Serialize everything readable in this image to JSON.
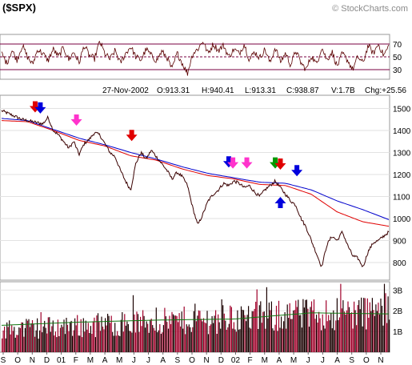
{
  "chart_data": {
    "type": "line",
    "title": "($SPX)",
    "watermark": "© StockCharts.com",
    "info_bar": {
      "date": "27-Nov-2002",
      "open": "O:913.31",
      "high": "H:940.41",
      "low": "L:913.31",
      "close": "C:938.87",
      "volume": "V:1.7B",
      "change": "Chg:+25.56"
    },
    "x_month_labels": [
      "S",
      "O",
      "N",
      "D",
      "01",
      "F",
      "M",
      "A",
      "M",
      "J",
      "J",
      "A",
      "S",
      "O",
      "N",
      "D",
      "02",
      "F",
      "M",
      "A",
      "M",
      "J",
      "J",
      "A",
      "S",
      "O",
      "N"
    ],
    "price_panel": {
      "ylim": [
        720,
        1560
      ],
      "y_ticks": [
        800,
        900,
        1000,
        1100,
        1200,
        1300,
        1400,
        1500
      ],
      "anchors": [
        [
          0,
          1490
        ],
        [
          2,
          1470
        ],
        [
          4,
          1450
        ],
        [
          6,
          1440
        ],
        [
          8,
          1430
        ],
        [
          9,
          1460
        ],
        [
          10,
          1400
        ],
        [
          11,
          1380
        ],
        [
          13,
          1320
        ],
        [
          14,
          1350
        ],
        [
          15,
          1290
        ],
        [
          16,
          1340
        ],
        [
          17,
          1360
        ],
        [
          18,
          1390
        ],
        [
          19,
          1380
        ],
        [
          20,
          1340
        ],
        [
          21,
          1300
        ],
        [
          22,
          1280
        ],
        [
          23,
          1220
        ],
        [
          24,
          1170
        ],
        [
          25,
          1130
        ],
        [
          26,
          1250
        ],
        [
          27,
          1300
        ],
        [
          28,
          1270
        ],
        [
          29,
          1310
        ],
        [
          30,
          1280
        ],
        [
          31,
          1250
        ],
        [
          32,
          1220
        ],
        [
          33,
          1180
        ],
        [
          34,
          1210
        ],
        [
          35,
          1190
        ],
        [
          36,
          1150
        ],
        [
          37,
          1050
        ],
        [
          38,
          970
        ],
        [
          39,
          1020
        ],
        [
          40,
          1080
        ],
        [
          41,
          1110
        ],
        [
          42,
          1130
        ],
        [
          43,
          1160
        ],
        [
          44,
          1150
        ],
        [
          45,
          1170
        ],
        [
          46,
          1160
        ],
        [
          47,
          1140
        ],
        [
          48,
          1150
        ],
        [
          49,
          1120
        ],
        [
          50,
          1100
        ],
        [
          51,
          1130
        ],
        [
          52,
          1150
        ],
        [
          53,
          1170
        ],
        [
          54,
          1140
        ],
        [
          55,
          1110
        ],
        [
          56,
          1080
        ],
        [
          57,
          1060
        ],
        [
          58,
          1000
        ],
        [
          59,
          960
        ],
        [
          60,
          900
        ],
        [
          61,
          840
        ],
        [
          62,
          780
        ],
        [
          63,
          880
        ],
        [
          64,
          920
        ],
        [
          65,
          900
        ],
        [
          66,
          940
        ],
        [
          67,
          880
        ],
        [
          68,
          830
        ],
        [
          69,
          820
        ],
        [
          70,
          780
        ],
        [
          71,
          850
        ],
        [
          72,
          890
        ],
        [
          73,
          900
        ],
        [
          74,
          920
        ],
        [
          75,
          938.87
        ]
      ],
      "ma_fast_anchors": [
        [
          0,
          1445
        ],
        [
          5,
          1440
        ],
        [
          10,
          1400
        ],
        [
          15,
          1355
        ],
        [
          20,
          1330
        ],
        [
          25,
          1285
        ],
        [
          30,
          1265
        ],
        [
          35,
          1225
        ],
        [
          40,
          1195
        ],
        [
          45,
          1180
        ],
        [
          50,
          1155
        ],
        [
          55,
          1150
        ],
        [
          60,
          1110
        ],
        [
          65,
          1030
        ],
        [
          70,
          985
        ],
        [
          75,
          965
        ]
      ],
      "ma_slow_anchors": [
        [
          0,
          1455
        ],
        [
          5,
          1445
        ],
        [
          10,
          1405
        ],
        [
          15,
          1365
        ],
        [
          20,
          1335
        ],
        [
          25,
          1300
        ],
        [
          30,
          1270
        ],
        [
          35,
          1235
        ],
        [
          40,
          1205
        ],
        [
          45,
          1185
        ],
        [
          50,
          1165
        ],
        [
          55,
          1160
        ],
        [
          60,
          1130
        ],
        [
          65,
          1080
        ],
        [
          70,
          1040
        ],
        [
          75,
          995
        ]
      ],
      "series": [
        {
          "name": "Price",
          "color": "#3a0000"
        },
        {
          "name": "MA fast",
          "color": "#e00000"
        },
        {
          "name": "MA slow",
          "color": "#0000cc"
        }
      ],
      "signals": [
        {
          "x": 6.5,
          "dir": "down",
          "color": "#e00000",
          "y": 1500
        },
        {
          "x": 7.5,
          "dir": "down",
          "color": "#0000dd",
          "y": 1495
        },
        {
          "x": 14.5,
          "dir": "down",
          "color": "#ff33cc",
          "y": 1440
        },
        {
          "x": 25.2,
          "dir": "down",
          "color": "#e00000",
          "y": 1370
        },
        {
          "x": 44.0,
          "dir": "down",
          "color": "#0000dd",
          "y": 1250
        },
        {
          "x": 44.8,
          "dir": "down",
          "color": "#ff33cc",
          "y": 1245
        },
        {
          "x": 47.5,
          "dir": "down",
          "color": "#ff33cc",
          "y": 1245
        },
        {
          "x": 53.0,
          "dir": "down",
          "color": "#009900",
          "y": 1245
        },
        {
          "x": 54.0,
          "dir": "down",
          "color": "#e00000",
          "y": 1240
        },
        {
          "x": 54.0,
          "dir": "up",
          "color": "#0000dd",
          "y": 1080
        },
        {
          "x": 57.2,
          "dir": "down",
          "color": "#0000dd",
          "y": 1210
        }
      ]
    },
    "rsi_panel": {
      "ylim": [
        15,
        85
      ],
      "y_ticks": [
        30,
        50,
        70
      ],
      "anchors": [
        [
          0,
          55
        ],
        [
          1,
          40
        ],
        [
          2,
          60
        ],
        [
          3,
          45
        ],
        [
          4,
          68
        ],
        [
          5,
          50
        ],
        [
          6,
          38
        ],
        [
          7,
          62
        ],
        [
          8,
          55
        ],
        [
          9,
          44
        ],
        [
          10,
          62
        ],
        [
          11,
          50
        ],
        [
          12,
          65
        ],
        [
          13,
          45
        ],
        [
          14,
          58
        ],
        [
          15,
          40
        ],
        [
          16,
          68
        ],
        [
          17,
          52
        ],
        [
          18,
          47
        ],
        [
          19,
          74
        ],
        [
          20,
          55
        ],
        [
          21,
          46
        ],
        [
          22,
          60
        ],
        [
          23,
          40
        ],
        [
          24,
          55
        ],
        [
          25,
          66
        ],
        [
          26,
          50
        ],
        [
          27,
          45
        ],
        [
          28,
          62
        ],
        [
          29,
          52
        ],
        [
          30,
          44
        ],
        [
          31,
          58
        ],
        [
          32,
          50
        ],
        [
          33,
          30
        ],
        [
          34,
          56
        ],
        [
          35,
          40
        ],
        [
          36,
          24
        ],
        [
          37,
          55
        ],
        [
          38,
          62
        ],
        [
          39,
          75
        ],
        [
          40,
          55
        ],
        [
          41,
          70
        ],
        [
          42,
          60
        ],
        [
          43,
          68
        ],
        [
          44,
          50
        ],
        [
          45,
          62
        ],
        [
          46,
          55
        ],
        [
          47,
          70
        ],
        [
          48,
          45
        ],
        [
          49,
          58
        ],
        [
          50,
          48
        ],
        [
          51,
          62
        ],
        [
          52,
          40
        ],
        [
          53,
          65
        ],
        [
          54,
          42
        ],
        [
          55,
          56
        ],
        [
          56,
          37
        ],
        [
          57,
          60
        ],
        [
          58,
          40
        ],
        [
          59,
          30
        ],
        [
          60,
          52
        ],
        [
          61,
          38
        ],
        [
          62,
          65
        ],
        [
          63,
          45
        ],
        [
          64,
          58
        ],
        [
          65,
          35
        ],
        [
          66,
          55
        ],
        [
          67,
          45
        ],
        [
          68,
          30
        ],
        [
          69,
          50
        ],
        [
          70,
          40
        ],
        [
          71,
          68
        ],
        [
          72,
          55
        ],
        [
          73,
          70
        ],
        [
          74,
          52
        ],
        [
          75,
          67
        ]
      ]
    },
    "volume_panel": {
      "ylim": [
        0,
        3.4
      ],
      "y_ticks": [
        {
          "v": 1,
          "label": "1B"
        },
        {
          "v": 2,
          "label": "2B"
        },
        {
          "v": 3,
          "label": "3B"
        }
      ],
      "avg_anchors": [
        [
          0,
          1.3
        ],
        [
          15,
          1.45
        ],
        [
          30,
          1.55
        ],
        [
          45,
          1.6
        ],
        [
          60,
          1.9
        ],
        [
          75,
          1.85
        ]
      ]
    }
  }
}
